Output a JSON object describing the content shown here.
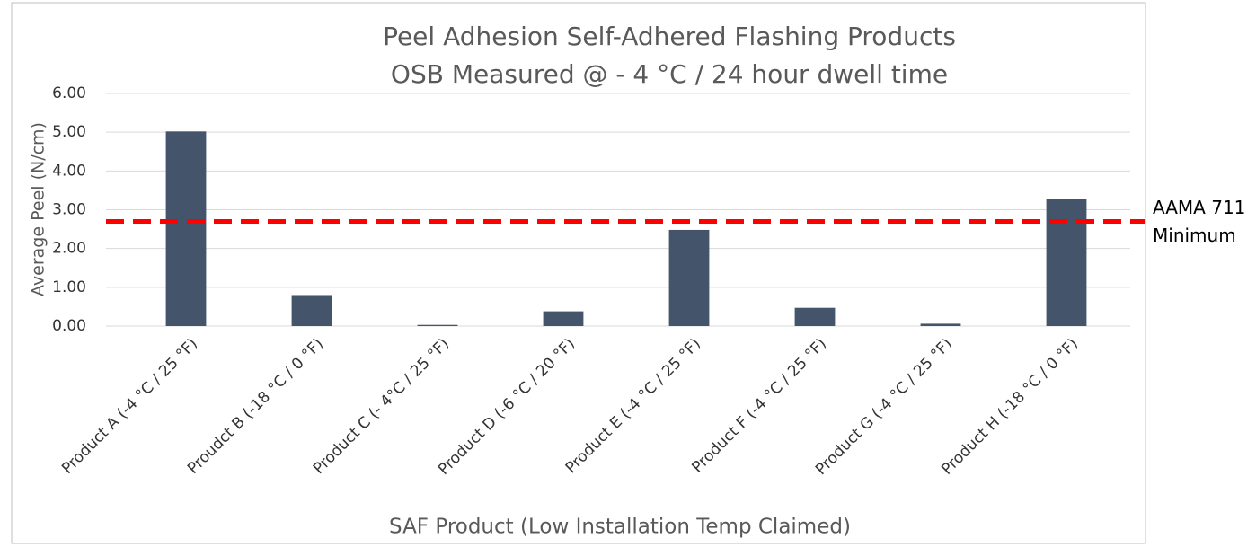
{
  "chart_data": {
    "type": "bar",
    "title": [
      "Peel Adhesion Self-Adhered Flashing Products",
      "OSB Measured @ - 4 °C  / 24 hour dwell time"
    ],
    "x_label": "SAF Product (Low Installation Temp Claimed)",
    "y_label": "Average Peel (N/cm)",
    "categories": [
      "Product A (-4 °C / 25 °F)",
      "Proudct B (-18 °C / 0 °F)",
      "Product C (- 4°C / 25 °F)",
      "Product D (-6 °C / 20 °F)",
      "Product E (-4 °C / 25 °F)",
      "Product F (-4 °C / 25 °F)",
      "Product G (-4 °C / 25 °F)",
      "Product H (-18 °C / 0 °F)"
    ],
    "values": [
      5.02,
      0.8,
      0.03,
      0.38,
      2.48,
      0.47,
      0.06,
      3.28
    ],
    "color": "#44546a",
    "ylim": [
      0,
      6
    ],
    "yticks": [
      {
        "value": 0,
        "label": "0.00"
      },
      {
        "value": 1,
        "label": "1.00"
      },
      {
        "value": 2,
        "label": "2.00"
      },
      {
        "value": 3,
        "label": "3.00"
      },
      {
        "value": 4,
        "label": "4.00"
      },
      {
        "value": 5,
        "label": "5.00"
      },
      {
        "value": 6,
        "label": "6.00"
      }
    ],
    "grid": true,
    "reference_line": {
      "value": 2.7,
      "label": [
        "AAMA 711",
        "Minimum"
      ],
      "color": "#ff0000"
    }
  }
}
